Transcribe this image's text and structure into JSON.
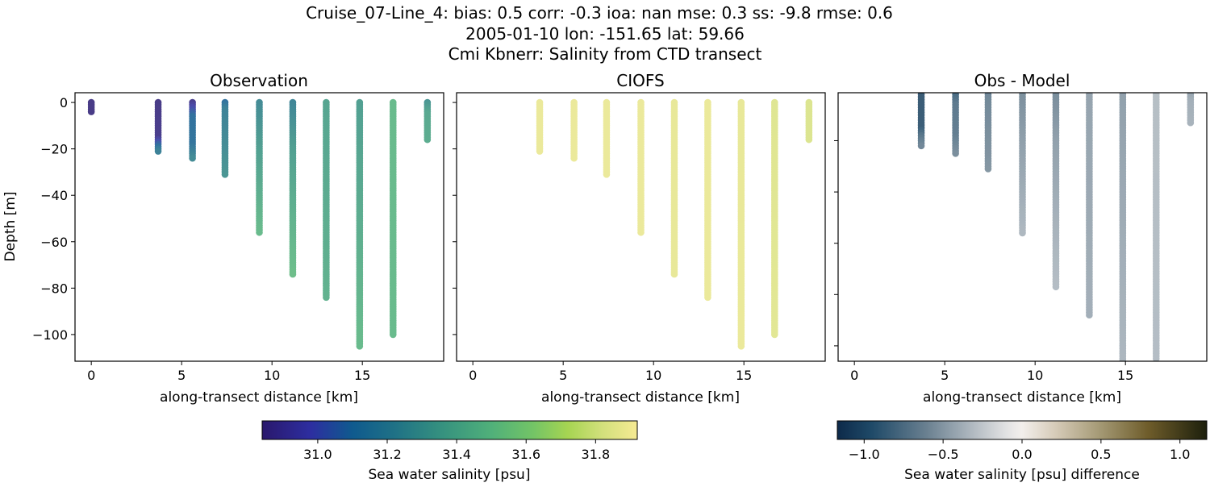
{
  "figure": {
    "title_lines": [
      "Cruise_07-Line_4: bias: 0.5  corr: -0.3  ioa: nan  mse: 0.3  ss: -9.8  rmse: 0.6",
      "2005-01-10 lon: -151.65 lat: 59.66",
      "Cmi Kbnerr: Salinity from CTD transect"
    ]
  },
  "chart_data": [
    {
      "type": "scatter",
      "title": "Observation",
      "xlabel": "along-transect distance [km]",
      "ylabel": "Depth [m]",
      "xlim": [
        -0.9,
        19.5
      ],
      "ylim": [
        -111.5,
        4.2
      ],
      "xticks": [
        0,
        5,
        10,
        15
      ],
      "yticks": [
        0,
        -20,
        -40,
        -60,
        -80,
        -100
      ],
      "ytick_labels_visible": true,
      "colormap": "haline",
      "casts": [
        {
          "distance": 0.0,
          "max_depth": 4,
          "salinity": [
            [
              0,
              30.86
            ],
            [
              4,
              30.86
            ]
          ]
        },
        {
          "distance": 3.7,
          "max_depth": 21,
          "salinity": [
            [
              0,
              30.86
            ],
            [
              15,
              30.88
            ],
            [
              18,
              31.05
            ],
            [
              21,
              31.2
            ]
          ]
        },
        {
          "distance": 5.6,
          "max_depth": 24,
          "salinity": [
            [
              0,
              30.88
            ],
            [
              3,
              31.0
            ],
            [
              6,
              31.1
            ],
            [
              18,
              31.12
            ],
            [
              24,
              31.25
            ]
          ]
        },
        {
          "distance": 7.4,
          "max_depth": 31,
          "salinity": [
            [
              0,
              31.1
            ],
            [
              3,
              31.2
            ],
            [
              31,
              31.3
            ]
          ]
        },
        {
          "distance": 9.3,
          "max_depth": 56,
          "salinity": [
            [
              0,
              31.25
            ],
            [
              20,
              31.35
            ],
            [
              56,
              31.5
            ]
          ]
        },
        {
          "distance": 11.15,
          "max_depth": 74,
          "salinity": [
            [
              0,
              31.22
            ],
            [
              20,
              31.35
            ],
            [
              50,
              31.45
            ],
            [
              74,
              31.52
            ]
          ]
        },
        {
          "distance": 13.0,
          "max_depth": 84,
          "salinity": [
            [
              0,
              31.38
            ],
            [
              84,
              31.45
            ]
          ]
        },
        {
          "distance": 14.85,
          "max_depth": 105,
          "salinity": [
            [
              0,
              31.35
            ],
            [
              105,
              31.5
            ]
          ]
        },
        {
          "distance": 16.7,
          "max_depth": 100,
          "salinity": [
            [
              0,
              31.5
            ],
            [
              100,
              31.5
            ]
          ]
        },
        {
          "distance": 18.6,
          "max_depth": 16,
          "salinity": [
            [
              0,
              31.3
            ],
            [
              5,
              31.4
            ],
            [
              16,
              31.42
            ]
          ]
        }
      ]
    },
    {
      "type": "scatter",
      "title": "CIOFS",
      "xlabel": "along-transect distance [km]",
      "xlim": [
        -0.9,
        19.5
      ],
      "ylim": [
        -111.5,
        4.2
      ],
      "xticks": [
        0,
        5,
        10,
        15
      ],
      "yticks": [
        0,
        -20,
        -40,
        -60,
        -80,
        -100
      ],
      "ytick_labels_visible": false,
      "colormap": "haline",
      "casts": [
        {
          "distance": 3.7,
          "max_depth": 21,
          "salinity": [
            [
              0,
              31.88
            ],
            [
              21,
              31.88
            ]
          ]
        },
        {
          "distance": 5.6,
          "max_depth": 24,
          "salinity": [
            [
              0,
              31.88
            ],
            [
              24,
              31.88
            ]
          ]
        },
        {
          "distance": 7.4,
          "max_depth": 31,
          "salinity": [
            [
              0,
              31.88
            ],
            [
              31,
              31.88
            ]
          ]
        },
        {
          "distance": 9.3,
          "max_depth": 56,
          "salinity": [
            [
              0,
              31.88
            ],
            [
              56,
              31.88
            ]
          ]
        },
        {
          "distance": 11.15,
          "max_depth": 74,
          "salinity": [
            [
              0,
              31.87
            ],
            [
              74,
              31.87
            ]
          ]
        },
        {
          "distance": 13.0,
          "max_depth": 84,
          "salinity": [
            [
              0,
              31.88
            ],
            [
              84,
              31.88
            ]
          ]
        },
        {
          "distance": 14.85,
          "max_depth": 105,
          "salinity": [
            [
              0,
              31.87
            ],
            [
              105,
              31.88
            ]
          ]
        },
        {
          "distance": 16.7,
          "max_depth": 100,
          "salinity": [
            [
              0,
              31.84
            ],
            [
              100,
              31.85
            ]
          ]
        },
        {
          "distance": 18.6,
          "max_depth": 16,
          "salinity": [
            [
              0,
              31.83
            ],
            [
              16,
              31.83
            ]
          ]
        }
      ]
    },
    {
      "type": "scatter",
      "title": "Obs - Model",
      "xlabel": "along-transect distance [km]",
      "xlim": [
        -0.9,
        19.5
      ],
      "ylim": [
        -106,
        -1.3
      ],
      "xticks": [
        0,
        5,
        10,
        15
      ],
      "yticks": [
        -20,
        -40,
        -60,
        -80,
        -100
      ],
      "ytick_labels_visible": false,
      "colormap": "diff",
      "casts": [
        {
          "distance": 3.7,
          "max_depth": 22,
          "difference": [
            [
              0,
              -1.02
            ],
            [
              15,
              -1.0
            ],
            [
              18,
              -0.83
            ],
            [
              22,
              -0.68
            ]
          ]
        },
        {
          "distance": 5.6,
          "max_depth": 25,
          "difference": [
            [
              0,
              -1.0
            ],
            [
              3,
              -0.88
            ],
            [
              6,
              -0.78
            ],
            [
              18,
              -0.76
            ],
            [
              25,
              -0.63
            ]
          ]
        },
        {
          "distance": 7.4,
          "max_depth": 31,
          "difference": [
            [
              0,
              -0.78
            ],
            [
              3,
              -0.68
            ],
            [
              31,
              -0.58
            ]
          ]
        },
        {
          "distance": 9.3,
          "max_depth": 56,
          "difference": [
            [
              0,
              -0.63
            ],
            [
              20,
              -0.53
            ],
            [
              56,
              -0.38
            ]
          ]
        },
        {
          "distance": 11.15,
          "max_depth": 77,
          "difference": [
            [
              0,
              -0.65
            ],
            [
              20,
              -0.52
            ],
            [
              50,
              -0.42
            ],
            [
              77,
              -0.35
            ]
          ]
        },
        {
          "distance": 13.0,
          "max_depth": 88,
          "difference": [
            [
              0,
              -0.5
            ],
            [
              88,
              -0.43
            ]
          ]
        },
        {
          "distance": 14.85,
          "max_depth": 110,
          "difference": [
            [
              0,
              -0.52
            ],
            [
              110,
              -0.38
            ]
          ]
        },
        {
          "distance": 16.7,
          "max_depth": 105,
          "difference": [
            [
              0,
              -0.34
            ],
            [
              105,
              -0.35
            ]
          ]
        },
        {
          "distance": 18.6,
          "max_depth": 13,
          "difference": [
            [
              0,
              -0.53
            ],
            [
              5,
              -0.43
            ],
            [
              13,
              -0.41
            ]
          ]
        }
      ]
    }
  ],
  "colorbars": [
    {
      "name": "salinity",
      "label": "Sea water salinity [psu]",
      "range": [
        30.84,
        31.92
      ],
      "ticks": [
        31.0,
        31.2,
        31.4,
        31.6,
        31.8
      ],
      "tick_labels": [
        "31.0",
        "31.2",
        "31.4",
        "31.6",
        "31.8"
      ],
      "stops": [
        [
          30.84,
          "#2a186c"
        ],
        [
          30.98,
          "#2d2ea0"
        ],
        [
          31.1,
          "#0f5a8e"
        ],
        [
          31.22,
          "#1f7186"
        ],
        [
          31.36,
          "#36927f"
        ],
        [
          31.5,
          "#50b07a"
        ],
        [
          31.62,
          "#73c466"
        ],
        [
          31.72,
          "#a6d452"
        ],
        [
          31.82,
          "#d3e07c"
        ],
        [
          31.92,
          "#f6ea93"
        ]
      ]
    },
    {
      "name": "difference",
      "label": "Sea water salinity [psu] difference",
      "range": [
        -1.17,
        1.17
      ],
      "ticks": [
        -1.0,
        -0.5,
        0.0,
        0.5,
        1.0
      ],
      "tick_labels": [
        "−1.0",
        "−0.5",
        "0.0",
        "0.5",
        "1.0"
      ],
      "stops": [
        [
          -1.17,
          "#0d2a4a"
        ],
        [
          -0.95,
          "#1f4a68"
        ],
        [
          -0.6,
          "#6b8191"
        ],
        [
          -0.3,
          "#b4bcc3"
        ],
        [
          -0.1,
          "#e2e2e3"
        ],
        [
          0.0,
          "#f3efec"
        ],
        [
          0.2,
          "#d8cdbb"
        ],
        [
          0.5,
          "#a39873"
        ],
        [
          0.8,
          "#6e5c2a"
        ],
        [
          1.17,
          "#1c1f0c"
        ]
      ]
    }
  ]
}
